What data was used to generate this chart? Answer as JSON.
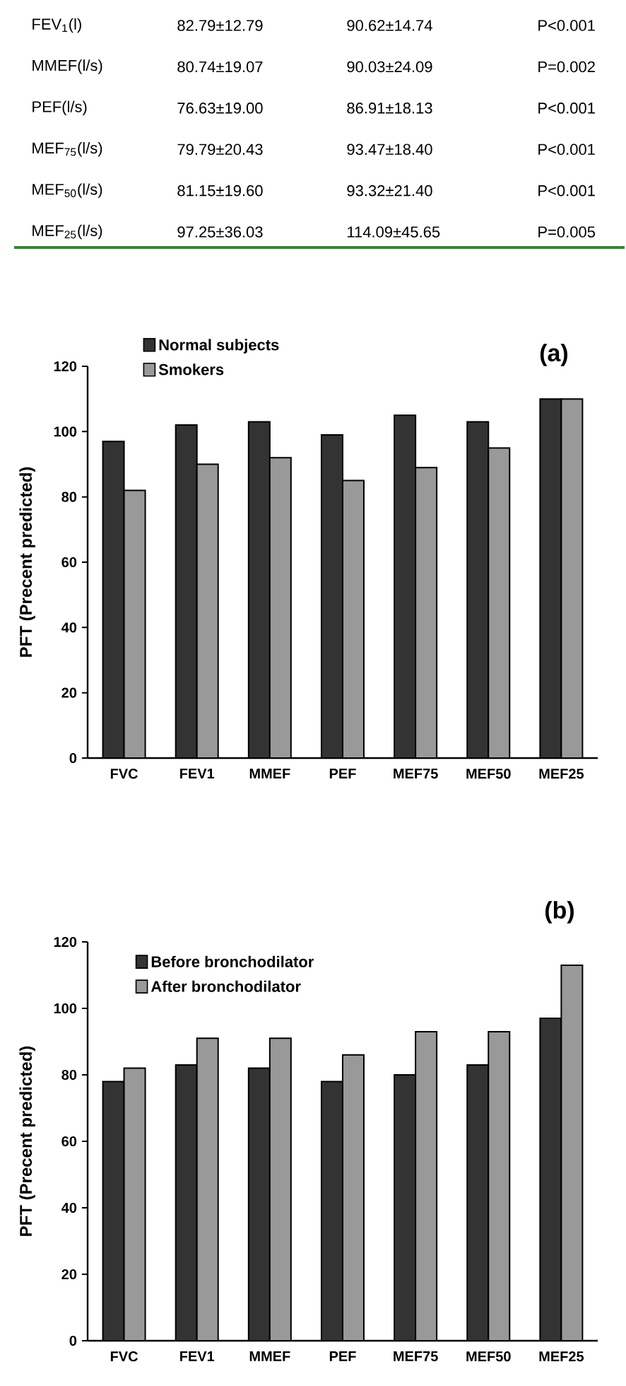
{
  "chart_data": [
    {
      "type": "other",
      "annotations": [
        "FEV$_{1}$(l)",
        "82.79±12.79",
        "90.62±14.74",
        "P<0.001",
        "MMEF(l/s)",
        "80.74±19.07",
        "90.03±24.09",
        "P=0.002",
        "PEF(l/s)",
        "76.63±19.00",
        "86.91±18.13",
        "P<0.001",
        "MEF$_{75}$(l/s)",
        "79.79±20.43",
        "93.47±18.40",
        "P<0.001",
        "MEF$_{50}$(l/s)",
        "81.15±19.60",
        "93.32±21.40",
        "P<0.001",
        "MEF$_{25}$(l/s)",
        "97.25±36.03",
        "114.09±45.65",
        "P=0.005"
      ]
    },
    {
      "type": "bar",
      "title": "(a)",
      "ylabel": "PFT (Precent predicted)",
      "categories": [
        "FVC",
        "FEV1",
        "MMEF",
        "PEF",
        "MEF75",
        "MEF50",
        "MEF25"
      ],
      "ylim": [
        0,
        120
      ],
      "yticks": [
        0,
        20,
        40,
        60,
        80,
        100,
        120
      ],
      "legend": "top left",
      "grid": false,
      "series": [
        {
          "name": "Normal subjects",
          "color": "#333333",
          "values": [
            97,
            102,
            103,
            99,
            105,
            103,
            110
          ]
        },
        {
          "name": "Smokers",
          "color": "#999999",
          "values": [
            82,
            90,
            92,
            85,
            89,
            95,
            110
          ]
        }
      ]
    },
    {
      "type": "bar",
      "title": "(b)",
      "ylabel": "PFT (Precent predicted)",
      "categories": [
        "FVC",
        "FEV1",
        "MMEF",
        "PEF",
        "MEF75",
        "MEF50",
        "MEF25"
      ],
      "ylim": [
        0,
        120
      ],
      "yticks": [
        0,
        20,
        40,
        60,
        80,
        100,
        120
      ],
      "legend": "top left",
      "grid": false,
      "series": [
        {
          "name": "Before bronchodilator",
          "color": "#333333",
          "values": [
            78,
            83,
            82,
            78,
            80,
            83,
            97
          ]
        },
        {
          "name": "After bronchodilator",
          "color": "#999999",
          "values": [
            82,
            91,
            91,
            86,
            93,
            93,
            113
          ]
        }
      ]
    }
  ]
}
